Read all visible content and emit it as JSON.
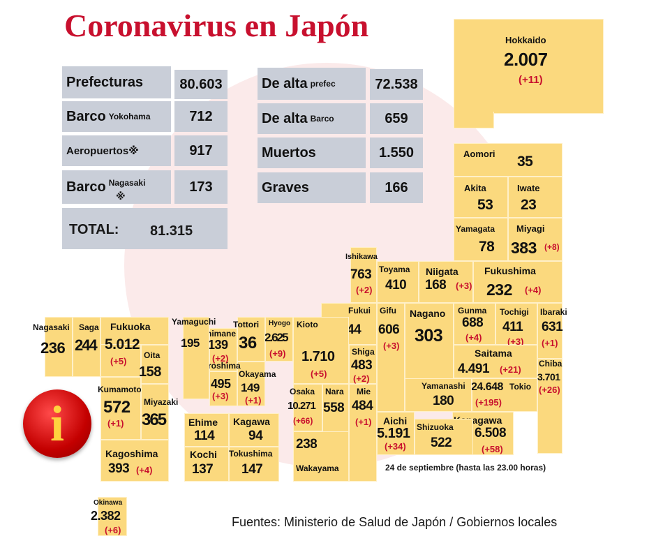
{
  "title": "Coronavirus en Japón",
  "stats": {
    "prefecturas_label": "Prefecturas",
    "prefecturas_value": "80.603",
    "barco_label": "Barco",
    "barco_sub": "Yokohama",
    "barco_value": "712",
    "aeropuertos_label": "Aeropuertos※",
    "aeropuertos_value": "917",
    "barco2_label": "Barco",
    "barco2_sub": "Nagasaki",
    "barco2_mark": "※",
    "barco2_value": "173",
    "total_label": "TOTAL:",
    "total_value": "81.315",
    "dealta_label": "De alta",
    "dealta_sub": "prefec",
    "dealta_value": "72.538",
    "dealta_barco_label": "De alta",
    "dealta_barco_sub": "Barco",
    "dealta_barco_value": "659",
    "muertos_label": "Muertos",
    "muertos_value": "1.550",
    "graves_label": "Graves",
    "graves_value": "166"
  },
  "prefectures": {
    "hokkaido": {
      "name": "Hokkaido",
      "count": "2.007",
      "inc": "(+11)"
    },
    "aomori": {
      "name": "Aomori",
      "count": "35"
    },
    "akita": {
      "name": "Akita",
      "count": "53"
    },
    "iwate": {
      "name": "Iwate",
      "count": "23"
    },
    "yamagata": {
      "name": "Yamagata",
      "count": "78"
    },
    "miyagi": {
      "name": "Miyagi",
      "count": "383",
      "inc": "(+8)"
    },
    "ishikawa": {
      "name": "Ishikawa",
      "count": "763",
      "inc": "(+2)"
    },
    "toyama": {
      "name": "Toyama",
      "count": "410"
    },
    "niigata": {
      "name": "Niigata",
      "count": "168",
      "inc": "(+3)"
    },
    "fukushima": {
      "name": "Fukushima",
      "count": "232",
      "inc": "(+4)"
    },
    "fukui": {
      "name": "Fukui",
      "count": "244"
    },
    "gifu": {
      "name": "Gifu",
      "count": "606",
      "inc": "(+3)"
    },
    "nagano": {
      "name": "Nagano",
      "count": "303"
    },
    "gunma": {
      "name": "Gunma",
      "count": "688",
      "inc": "(+4)"
    },
    "tochigi": {
      "name": "Tochigi",
      "count": "411",
      "inc": "(+3)"
    },
    "ibaraki": {
      "name": "Ibaraki",
      "count": "631",
      "inc": "(+1)"
    },
    "saitama": {
      "name": "Saitama",
      "count": "4.491",
      "inc": "(+21)"
    },
    "chiba": {
      "name": "Chiba",
      "count": "3.701",
      "inc": "(+26)"
    },
    "tokio": {
      "name": "Tokio",
      "count": "24.648",
      "inc": "(+195)"
    },
    "yamanashi": {
      "name": "Yamanashi",
      "count": "180"
    },
    "kanagawa": {
      "name": "Kanagawa",
      "count": "6.508",
      "inc": "(+58)"
    },
    "shizuoka": {
      "name": "Shizuoka",
      "count": "522"
    },
    "aichi": {
      "name": "Aichi",
      "count": "5.191",
      "inc": "(+34)"
    },
    "shiga": {
      "name": "Shiga",
      "count": "483",
      "inc": "(+2)"
    },
    "mie": {
      "name": "Mie",
      "count": "484",
      "inc": "(+1)"
    },
    "kioto": {
      "name": "Kioto",
      "count": "1.710",
      "inc": "(+5)"
    },
    "nara": {
      "name": "Nara",
      "count": "558"
    },
    "osaka": {
      "name": "Osaka",
      "count": "10.271",
      "inc": "(+66)"
    },
    "hyogo": {
      "name": "Hyogo",
      "count": "2.625",
      "inc": "(+9)"
    },
    "wakayama": {
      "name": "Wakayama",
      "count": "238"
    },
    "tottori": {
      "name": "Tottori",
      "count": "36"
    },
    "shimane": {
      "name": "Shimane",
      "count": "139",
      "inc": "(+2)"
    },
    "okayama": {
      "name": "Okayama",
      "count": "149",
      "inc": "(+1)"
    },
    "hiroshima": {
      "name": "Hiroshima",
      "count": "495",
      "inc": "(+3)"
    },
    "yamaguchi": {
      "name": "Yamaguchi",
      "count": "195"
    },
    "ehime": {
      "name": "Ehime",
      "count": "114"
    },
    "kagawa": {
      "name": "Kagawa",
      "count": "94"
    },
    "kochi": {
      "name": "Kochi",
      "count": "137"
    },
    "tokushima": {
      "name": "Tokushima",
      "count": "147"
    },
    "nagasaki": {
      "name": "Nagasaki",
      "count": "236"
    },
    "saga": {
      "name": "Saga",
      "count": "244"
    },
    "fukuoka": {
      "name": "Fukuoka",
      "count": "5.012",
      "inc": "(+5)"
    },
    "oita": {
      "name": "Oita",
      "count": "158"
    },
    "kumamoto": {
      "name": "Kumamoto",
      "count": "572",
      "inc": "(+1)"
    },
    "miyazaki": {
      "name": "Miyazaki",
      "count": "365"
    },
    "kagoshima": {
      "name": "Kagoshima",
      "count": "393",
      "inc": "(+4)"
    },
    "okinawa": {
      "name": "Okinawa",
      "count": "2.382",
      "inc": "(+6)"
    }
  },
  "date_note": "24 de septiembre  (hasta las 23.00 horas)",
  "sources": "Fuentes: Ministerio de Salud de Japón / Gobiernos locales",
  "info_icon": "info-icon",
  "colors": {
    "accent": "#c8102e",
    "region": "#fbd97e",
    "panel": "#c9ced8"
  }
}
